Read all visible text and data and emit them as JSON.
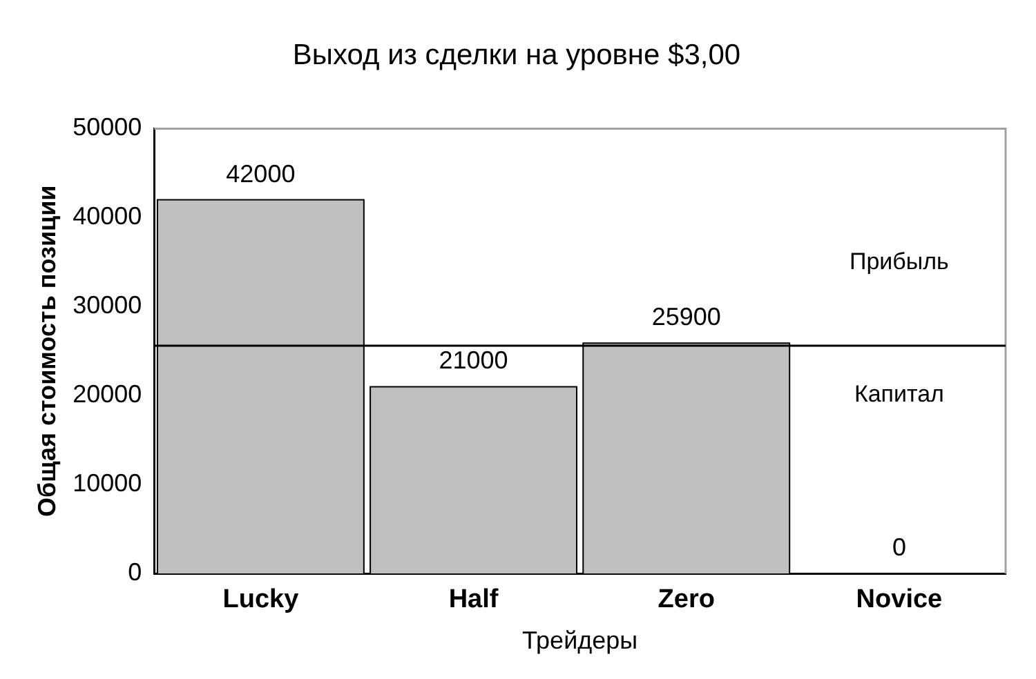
{
  "chart_data": {
    "type": "bar",
    "title": "Выход из сделки на уровне $3,00",
    "xlabel": "Трейдеры",
    "ylabel": "Общая стоимость позиции",
    "categories": [
      "Lucky",
      "Half",
      "Zero",
      "Novice"
    ],
    "values": [
      42000,
      21000,
      25900,
      0
    ],
    "color": "#c0c0c0",
    "data_labels": true,
    "ylim": [
      0,
      50000
    ],
    "yticks": [
      0,
      10000,
      20000,
      30000,
      40000,
      50000
    ],
    "grid": false,
    "legend": false,
    "ref_lines": [
      {
        "axis": "y",
        "value": 25600,
        "color": "#000000"
      }
    ],
    "annotations": [
      "Прибыль",
      "Капитал"
    ]
  }
}
